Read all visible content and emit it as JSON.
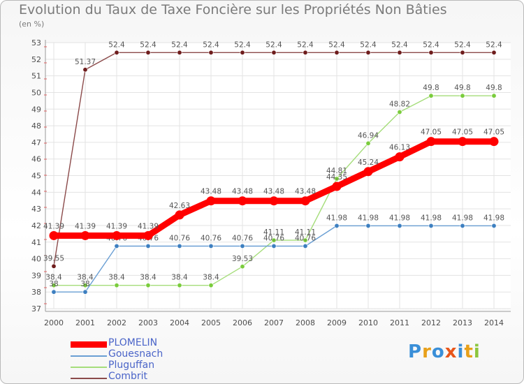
{
  "chart_data": {
    "type": "line",
    "title": "Evolution du Taux de Taxe Foncière sur les Propriétés Non Bâties",
    "subtitle": "(en %)",
    "xlabel": "",
    "ylabel": "",
    "ylim": [
      37,
      53
    ],
    "yticks": [
      "37",
      "38",
      "39",
      "40",
      "41",
      "42",
      "43",
      "44",
      "45",
      "46",
      "47",
      "48",
      "49",
      "50",
      "51",
      "52",
      "53"
    ],
    "x": [
      "2000",
      "2001",
      "2002",
      "2003",
      "2004",
      "2005",
      "2006",
      "2007",
      "2008",
      "2009",
      "2010",
      "2011",
      "2012",
      "2013",
      "2014"
    ],
    "grid": true,
    "legend_position": "bottom-left",
    "series": [
      {
        "name": "PLOMELIN",
        "color": "#ff0000",
        "emphasis": true,
        "values": [
          41.39,
          41.39,
          41.39,
          41.39,
          42.63,
          43.48,
          43.48,
          43.48,
          43.48,
          44.35,
          45.24,
          46.13,
          47.05,
          47.05,
          47.05
        ],
        "labels": [
          "41.39",
          "41.39",
          "41.39",
          "41.39",
          "42.63",
          "43.48",
          "43.48",
          "43.48",
          "43.48",
          "44.35",
          "45.24",
          "46.13",
          "47.05",
          "47.05",
          "47.05"
        ]
      },
      {
        "name": "Gouesnach",
        "color": "#6a9fd4",
        "marker_color": "#3d7fc0",
        "values": [
          38,
          38,
          40.76,
          40.76,
          40.76,
          40.76,
          40.76,
          40.76,
          40.76,
          41.98,
          41.98,
          41.98,
          41.98,
          41.98,
          41.98
        ],
        "labels": [
          "38",
          "38",
          "40.76",
          "40.76",
          "40.76",
          "40.76",
          "40.76",
          "40.76",
          "40.76",
          "41.98",
          "41.98",
          "41.98",
          "41.98",
          "41.98",
          "41.98"
        ]
      },
      {
        "name": "Pluguffan",
        "color": "#a5dd7a",
        "marker_color": "#7acc3c",
        "values": [
          38.4,
          38.4,
          38.4,
          38.4,
          38.4,
          38.4,
          39.53,
          41.11,
          41.11,
          44.81,
          46.94,
          48.82,
          49.8,
          49.8,
          49.8
        ],
        "labels": [
          "38.4",
          "38.4",
          "38.4",
          "38.4",
          "38.4",
          "38.4",
          "39.53",
          "41.11",
          "41.11",
          "44.81",
          "46.94",
          "48.82",
          "49.8",
          "49.8",
          "49.8"
        ]
      },
      {
        "name": "Combrit",
        "color": "#8b4a4a",
        "marker_color": "#6e1c1c",
        "values": [
          39.55,
          51.37,
          52.4,
          52.4,
          52.4,
          52.4,
          52.4,
          52.4,
          52.4,
          52.4,
          52.4,
          52.4,
          52.4,
          52.4,
          52.4
        ],
        "labels": [
          "39.55",
          "51.37",
          "52.4",
          "52.4",
          "52.4",
          "52.4",
          "52.4",
          "52.4",
          "52.4",
          "52.4",
          "52.4",
          "52.4",
          "52.4",
          "52.4",
          "52.4"
        ]
      }
    ]
  },
  "brand": {
    "letters": [
      "P",
      "r",
      "o",
      "x",
      "i",
      "t",
      "i"
    ],
    "colors": [
      "#3a8fd8",
      "#e8a01a",
      "#3a8fd8",
      "#e8561a",
      "#3a8fd8",
      "#e8a01a",
      "#8cc63e"
    ]
  }
}
